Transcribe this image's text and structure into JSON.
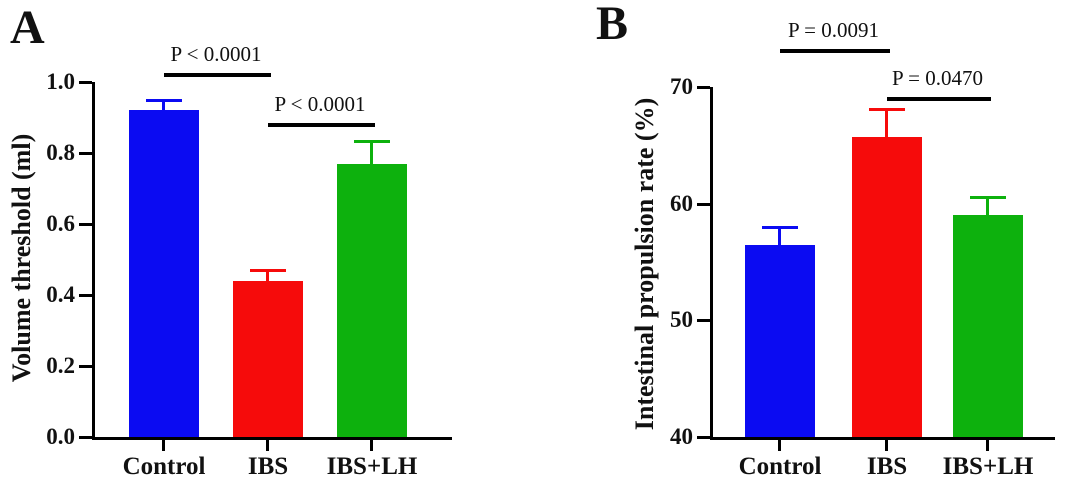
{
  "figure": {
    "background": "#ffffff",
    "text_color": "#111111",
    "axis_color": "#000000"
  },
  "chart_data": [
    {
      "type": "bar",
      "panel_label": "A",
      "title": "",
      "xlabel": "",
      "ylabel": "Volume threshold (ml)",
      "categories": [
        "Control",
        "IBS",
        "IBS+LH"
      ],
      "values": [
        0.92,
        0.44,
        0.77
      ],
      "errors_plus": [
        0.03,
        0.03,
        0.065
      ],
      "bar_colors": [
        "#0b0bf2",
        "#f60b0b",
        "#0db10d"
      ],
      "ylim": [
        0,
        1.0
      ],
      "yticks": [
        0,
        0.2,
        0.4,
        0.6,
        0.8,
        1.0
      ],
      "ytick_labels": [
        "0.0",
        "0.2",
        "0.4",
        "0.6",
        "0.8",
        "1.0"
      ],
      "grid": false,
      "legend": "none",
      "annotations": [
        {
          "text": "P < 0.0001",
          "from": 0,
          "to": 1
        },
        {
          "text": "P < 0.0001",
          "from": 1,
          "to": 2
        }
      ]
    },
    {
      "type": "bar",
      "panel_label": "B",
      "title": "",
      "xlabel": "",
      "ylabel": "Intestinal propulsion rate (%)",
      "categories": [
        "Control",
        "IBS",
        "IBS+LH"
      ],
      "values": [
        56.5,
        65.7,
        59.0
      ],
      "errors_plus": [
        1.5,
        2.4,
        1.6
      ],
      "bar_colors": [
        "#0b0bf2",
        "#f60b0b",
        "#0db10d"
      ],
      "ylim": [
        40,
        70
      ],
      "yticks": [
        40,
        50,
        60,
        70
      ],
      "ytick_labels": [
        "40",
        "50",
        "60",
        "70"
      ],
      "grid": false,
      "legend": "none",
      "annotations": [
        {
          "text": "P = 0.0091",
          "from": 0,
          "to": 1
        },
        {
          "text": "P = 0.0470",
          "from": 1,
          "to": 2
        }
      ]
    }
  ]
}
